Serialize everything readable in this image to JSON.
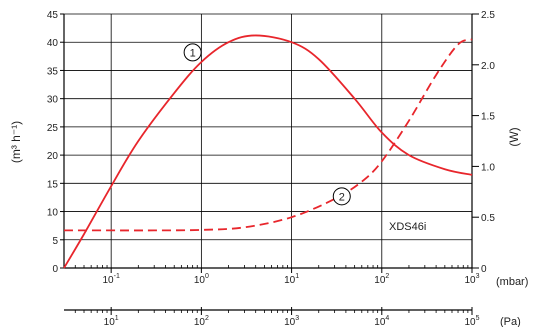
{
  "chart_data": {
    "type": "line",
    "ylabel_left": "(m³ h⁻¹)",
    "ylabel_right": "(W)",
    "unit_mbar": "(mbar)",
    "unit_pa": "(Pa)",
    "annotation": "XDS46i",
    "xlim_mbar": [
      0.03,
      1000
    ],
    "xscale": "log",
    "ylim_left": [
      0,
      45
    ],
    "ylim_right": [
      0,
      2.5
    ],
    "grid": true,
    "left_ticks": [
      "0",
      "5",
      "10",
      "15",
      "20",
      "25",
      "30",
      "35",
      "40",
      "45"
    ],
    "right_ticks": [
      "0",
      "0.5",
      "1.0",
      "1.5",
      "2.0",
      "2.5"
    ],
    "mbar_ticks": [
      {
        "x": 0.1,
        "base": "10",
        "exp": "-1"
      },
      {
        "x": 1,
        "base": "10",
        "exp": "0"
      },
      {
        "x": 10,
        "base": "10",
        "exp": "1"
      },
      {
        "x": 100,
        "base": "10",
        "exp": "2"
      },
      {
        "x": 1000,
        "base": "10",
        "exp": "3"
      }
    ],
    "pa_ticks": [
      {
        "x": 0.1,
        "base": "10",
        "exp": "1"
      },
      {
        "x": 1,
        "base": "10",
        "exp": "2"
      },
      {
        "x": 10,
        "base": "10",
        "exp": "3"
      },
      {
        "x": 100,
        "base": "10",
        "exp": "4"
      },
      {
        "x": 1000,
        "base": "10",
        "exp": "5"
      }
    ],
    "series": [
      {
        "name": "1",
        "axis": "left",
        "style": "solid",
        "color": "#e8262c",
        "x": [
          0.03,
          0.05,
          0.1,
          0.2,
          0.5,
          1,
          2,
          4,
          10,
          20,
          50,
          100,
          200,
          500,
          1000
        ],
        "y": [
          0,
          6,
          14.5,
          22.5,
          31,
          36.5,
          40,
          41.2,
          40,
          37,
          30,
          24,
          20,
          17.5,
          16.5
        ]
      },
      {
        "name": "2",
        "axis": "right",
        "style": "dashed",
        "color": "#e8262c",
        "x": [
          0.03,
          0.1,
          0.3,
          1,
          3,
          10,
          30,
          60,
          100,
          200,
          400,
          700,
          1000
        ],
        "y": [
          0.37,
          0.37,
          0.37,
          0.375,
          0.4,
          0.5,
          0.68,
          0.85,
          1.05,
          1.45,
          1.9,
          2.2,
          2.25
        ]
      }
    ],
    "labels": [
      {
        "text": "1",
        "x": 0.8,
        "y_left": 38.2
      },
      {
        "text": "2",
        "x": 36,
        "y_left": 12.7
      }
    ]
  }
}
